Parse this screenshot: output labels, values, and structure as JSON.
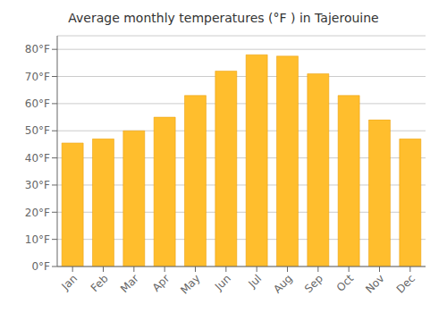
{
  "chart_data": {
    "type": "bar",
    "title": "Average monthly temperatures (°F ) in Tajerouine",
    "categories": [
      "Jan",
      "Feb",
      "Mar",
      "Apr",
      "May",
      "Jun",
      "Jul",
      "Aug",
      "Sep",
      "Oct",
      "Nov",
      "Dec"
    ],
    "values": [
      45.5,
      47.0,
      50.0,
      55.0,
      63.0,
      72.0,
      78.0,
      77.5,
      71.0,
      63.0,
      54.0,
      47.0
    ],
    "color": "#FFBE2D",
    "ylim": [
      0,
      85
    ],
    "yticks": [
      {
        "value": 0,
        "label": "0°F"
      },
      {
        "value": 10,
        "label": "10°F"
      },
      {
        "value": 20,
        "label": "20°F"
      },
      {
        "value": 30,
        "label": "30°F"
      },
      {
        "value": 40,
        "label": "40°F"
      },
      {
        "value": 50,
        "label": "50°F"
      },
      {
        "value": 60,
        "label": "60°F"
      },
      {
        "value": 70,
        "label": "70°F"
      },
      {
        "value": 80,
        "label": "80°F"
      }
    ],
    "grid": true
  }
}
